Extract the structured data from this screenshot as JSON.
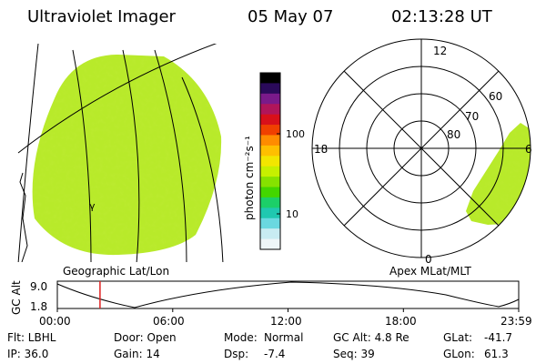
{
  "header": {
    "instrument": "Ultraviolet Imager",
    "date": "05 May 07",
    "time": "02:13:28 UT"
  },
  "left_panel": {
    "caption": "Geographic Lat/Lon"
  },
  "right_panel": {
    "caption": "Apex MLat/MLT",
    "mlt_labels": {
      "top": "12",
      "left": "18",
      "right": "6",
      "bottom": "0"
    },
    "lat_labels": [
      "60",
      "70",
      "80"
    ]
  },
  "colorbar": {
    "unit_label": "photon cm⁻²s⁻¹",
    "tick_labels": [
      "100",
      "10"
    ],
    "colors": [
      "#000000",
      "#2a0a5a",
      "#7a1a8a",
      "#b0155a",
      "#d8101a",
      "#f04000",
      "#ff8c00",
      "#ffbf00",
      "#f2e600",
      "#c6f000",
      "#86e200",
      "#43d600",
      "#1ccf68",
      "#20c8b0",
      "#6ad8e0",
      "#c8ecf2",
      "#eef6f8"
    ]
  },
  "timeline": {
    "ylabel": "GC Alt",
    "ymax_label": "9.0",
    "ymin_label": "1.8",
    "ticks": [
      "00:00",
      "06:00",
      "12:00",
      "18:00",
      "23:59"
    ],
    "current_time_hours": 2.22
  },
  "info": {
    "flt": "Flt: LBHL",
    "door": "Door: Open",
    "mode_label": "Mode:",
    "mode_value": "Normal",
    "gc_alt": "GC Alt: 4.8 Re",
    "glat_label": "GLat:",
    "glat_value": "-41.7",
    "ip": "IP: 36.0",
    "gain": "Gain: 14",
    "dsp_label": "Dsp:",
    "dsp_value": "-7.4",
    "seq": "Seq: 39",
    "glon_label": "GLon:",
    "glon_value": "61.3"
  },
  "left_marker": "γ"
}
